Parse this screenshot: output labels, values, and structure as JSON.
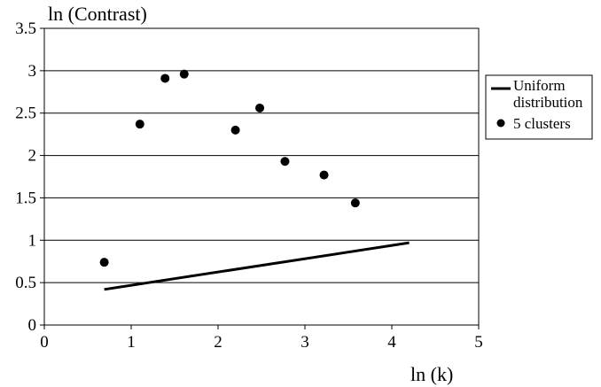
{
  "chart_data": {
    "type": "scatter",
    "title": "",
    "ylabel": "ln (Contrast)",
    "xlabel": "ln (k)",
    "xlim": [
      0,
      5
    ],
    "ylim": [
      0,
      3.5
    ],
    "x_ticks": [
      "0",
      "1",
      "2",
      "3",
      "4",
      "5"
    ],
    "y_ticks": [
      "0",
      "0.5",
      "1",
      "1.5",
      "2",
      "2.5",
      "3",
      "3.5"
    ],
    "grid": "horizontal",
    "legend_position": "right",
    "series": [
      {
        "name": "Uniform distribution",
        "kind": "line",
        "x": [
          0.69,
          4.2
        ],
        "y": [
          0.42,
          0.97
        ]
      },
      {
        "name": "5 clusters",
        "kind": "scatter",
        "x": [
          0.69,
          1.1,
          1.39,
          1.61,
          2.2,
          2.48,
          2.77,
          3.22,
          3.58
        ],
        "y": [
          0.74,
          2.37,
          2.91,
          2.96,
          2.3,
          2.56,
          1.93,
          1.77,
          1.44
        ]
      }
    ],
    "legend": {
      "line_label_1": "Uniform",
      "line_label_2": "distribution",
      "dots_label": "5 clusters"
    }
  }
}
